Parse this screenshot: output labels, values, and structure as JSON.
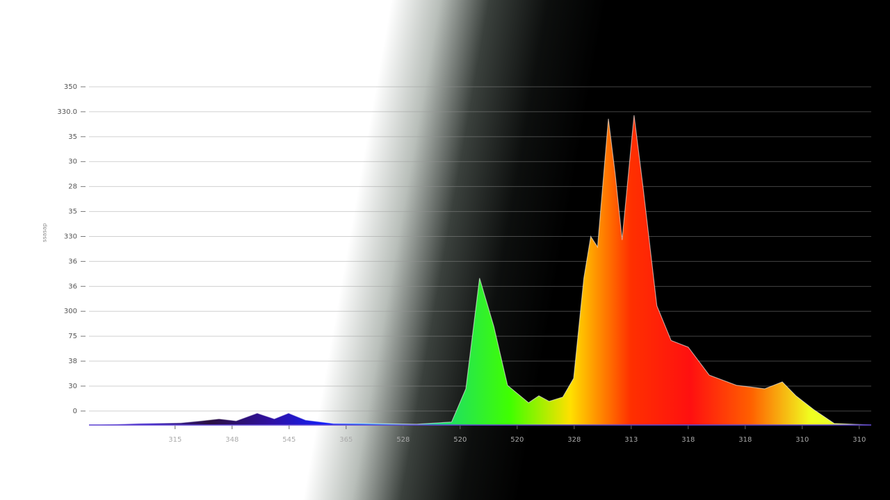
{
  "chart_data": {
    "type": "area",
    "y_label": "ssasap",
    "x": [
      -0.51,
      0.37,
      1.1,
      1.46,
      1.77,
      2.07,
      2.44,
      2.74,
      2.99,
      3.29,
      3.78,
      4.27,
      5.24,
      5.85,
      6.1,
      6.34,
      6.59,
      6.83,
      7.2,
      7.38,
      7.56,
      7.8,
      7.99,
      8.17,
      8.29,
      8.41,
      8.6,
      8.72,
      8.84,
      9.05,
      9.21,
      9.45,
      9.7,
      10.0,
      10.37,
      10.85,
      11.34,
      11.65,
      11.89,
      12.2,
      12.56,
      13.21
    ],
    "series": [
      {
        "values": [
          -0.56,
          -0.5,
          -0.47,
          -0.39,
          -0.31,
          -0.39,
          -0.08,
          -0.31,
          -0.08,
          -0.36,
          -0.5,
          -0.5,
          -0.53,
          -0.44,
          0.89,
          5.33,
          3.39,
          1.03,
          0.33,
          0.61,
          0.39,
          0.56,
          1.31,
          5.33,
          7.0,
          6.58,
          11.72,
          9.5,
          6.86,
          11.86,
          8.94,
          4.22,
          2.83,
          2.56,
          1.44,
          1.03,
          0.89,
          1.17,
          0.61,
          0.06,
          -0.5,
          -0.56
        ],
        "gradient": [
          "#4b1fd0",
          "#3a20c8",
          "#2a0f40",
          "#2f10a0",
          "#1020ff",
          "#00c8ff",
          "#20e060",
          "#40ff00",
          "#ffe000",
          "#ff3000",
          "#ff1010",
          "#ff6000",
          "#f0ff20",
          "#e0ff40"
        ]
      }
    ],
    "xlim": [
      -0.51,
      13.21
    ],
    "ylim": [
      -0.56,
      13
    ],
    "xticks": [
      {
        "value": 1,
        "label": "315"
      },
      {
        "value": 2,
        "label": "348"
      },
      {
        "value": 3,
        "label": "545"
      },
      {
        "value": 4,
        "label": "365"
      },
      {
        "value": 5,
        "label": "528"
      },
      {
        "value": 6,
        "label": "520"
      },
      {
        "value": 7,
        "label": "520"
      },
      {
        "value": 8,
        "label": "328"
      },
      {
        "value": 9,
        "label": "313"
      },
      {
        "value": 10,
        "label": "318"
      },
      {
        "value": 11,
        "label": "318"
      },
      {
        "value": 12,
        "label": "310"
      },
      {
        "value": 13,
        "label": "310"
      }
    ],
    "yticks": [
      {
        "value": 0,
        "label": "0"
      },
      {
        "value": 1,
        "label": "30"
      },
      {
        "value": 2,
        "label": "38"
      },
      {
        "value": 3,
        "label": "75"
      },
      {
        "value": 4,
        "label": "300"
      },
      {
        "value": 5,
        "label": "36"
      },
      {
        "value": 6,
        "label": "36"
      },
      {
        "value": 7,
        "label": "330"
      },
      {
        "value": 8,
        "label": "35"
      },
      {
        "value": 9,
        "label": "28"
      },
      {
        "value": 10,
        "label": "30"
      },
      {
        "value": 11,
        "label": "35"
      },
      {
        "value": 12,
        "label": "330.0"
      },
      {
        "value": 13,
        "label": "350"
      }
    ],
    "grid": true
  }
}
